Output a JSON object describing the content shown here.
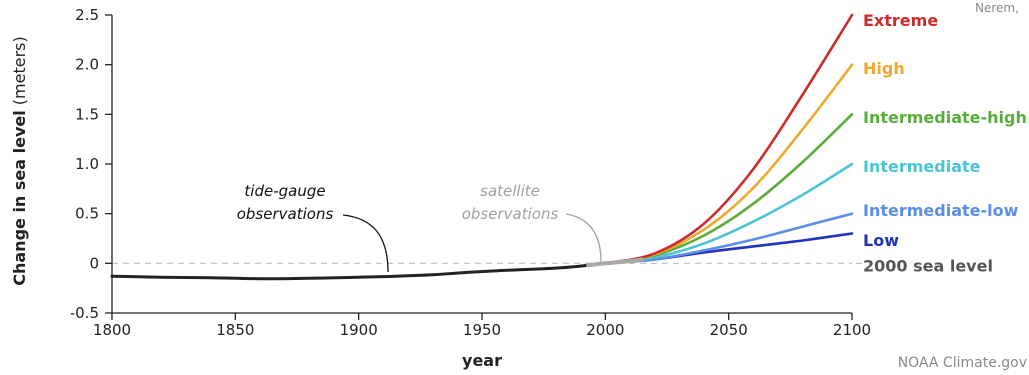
{
  "chart_data": {
    "type": "line",
    "xlabel": "year",
    "ylabel_bold": "Change in sea level",
    "ylabel_unit": " (meters)",
    "xlim": [
      1800,
      2100
    ],
    "ylim": [
      -0.5,
      2.5
    ],
    "x_ticks": [
      1800,
      1850,
      1900,
      1950,
      2000,
      2050,
      2100
    ],
    "y_ticks": [
      {
        "value": -0.5,
        "label": "-0.5"
      },
      {
        "value": 0,
        "label": "0"
      },
      {
        "value": 0.5,
        "label": "0.5"
      },
      {
        "value": 1.0,
        "label": "1.0"
      },
      {
        "value": 1.5,
        "label": "1.5"
      },
      {
        "value": 2.0,
        "label": "2.0"
      },
      {
        "value": 2.5,
        "label": "2.5"
      }
    ],
    "baseline": {
      "value": 0,
      "label": "2000 sea level",
      "color": "#888888"
    },
    "observations": [
      {
        "label": "tide-gauge observations",
        "label_lines": [
          "tide-gauge",
          "observations"
        ],
        "color": "#222222",
        "x": [
          1800,
          1820,
          1840,
          1860,
          1880,
          1900,
          1915,
          1930,
          1945,
          1960,
          1975,
          1985,
          1993
        ],
        "y": [
          -0.13,
          -0.14,
          -0.145,
          -0.155,
          -0.15,
          -0.14,
          -0.13,
          -0.115,
          -0.09,
          -0.07,
          -0.055,
          -0.04,
          -0.02
        ]
      },
      {
        "label": "satellite observations",
        "label_lines": [
          "satellite",
          "observations"
        ],
        "color": "#a8a8a8",
        "x": [
          1993,
          2000,
          2007,
          2015
        ],
        "y": [
          -0.02,
          0.0,
          0.015,
          0.04
        ]
      }
    ],
    "scenarios": [
      {
        "name": "Extreme",
        "color": "#cc2b2b",
        "x": [
          2000,
          2020,
          2040,
          2060,
          2080,
          2100
        ],
        "y": [
          0,
          0.1,
          0.4,
          0.95,
          1.7,
          2.5
        ]
      },
      {
        "name": "High",
        "color": "#f0a830",
        "x": [
          2000,
          2020,
          2040,
          2060,
          2080,
          2100
        ],
        "y": [
          0,
          0.09,
          0.34,
          0.76,
          1.35,
          2.0
        ]
      },
      {
        "name": "Intermediate-high",
        "color": "#5aad3c",
        "x": [
          2000,
          2020,
          2040,
          2060,
          2080,
          2100
        ],
        "y": [
          0,
          0.08,
          0.28,
          0.6,
          1.02,
          1.5
        ]
      },
      {
        "name": "Intermediate",
        "color": "#4cc4d4",
        "x": [
          2000,
          2020,
          2040,
          2060,
          2080,
          2100
        ],
        "y": [
          0,
          0.06,
          0.2,
          0.42,
          0.69,
          1.0
        ]
      },
      {
        "name": "Intermediate-low",
        "color": "#5b8ee6",
        "x": [
          2000,
          2020,
          2040,
          2060,
          2080,
          2100
        ],
        "y": [
          0,
          0.04,
          0.13,
          0.24,
          0.37,
          0.5
        ]
      },
      {
        "name": "Low",
        "color": "#2233bb",
        "x": [
          2000,
          2020,
          2040,
          2060,
          2080,
          2100
        ],
        "y": [
          0,
          0.04,
          0.11,
          0.17,
          0.23,
          0.3
        ]
      }
    ]
  },
  "credits": {
    "source": "NOAA Climate.gov",
    "top_right": "Nerem,"
  }
}
